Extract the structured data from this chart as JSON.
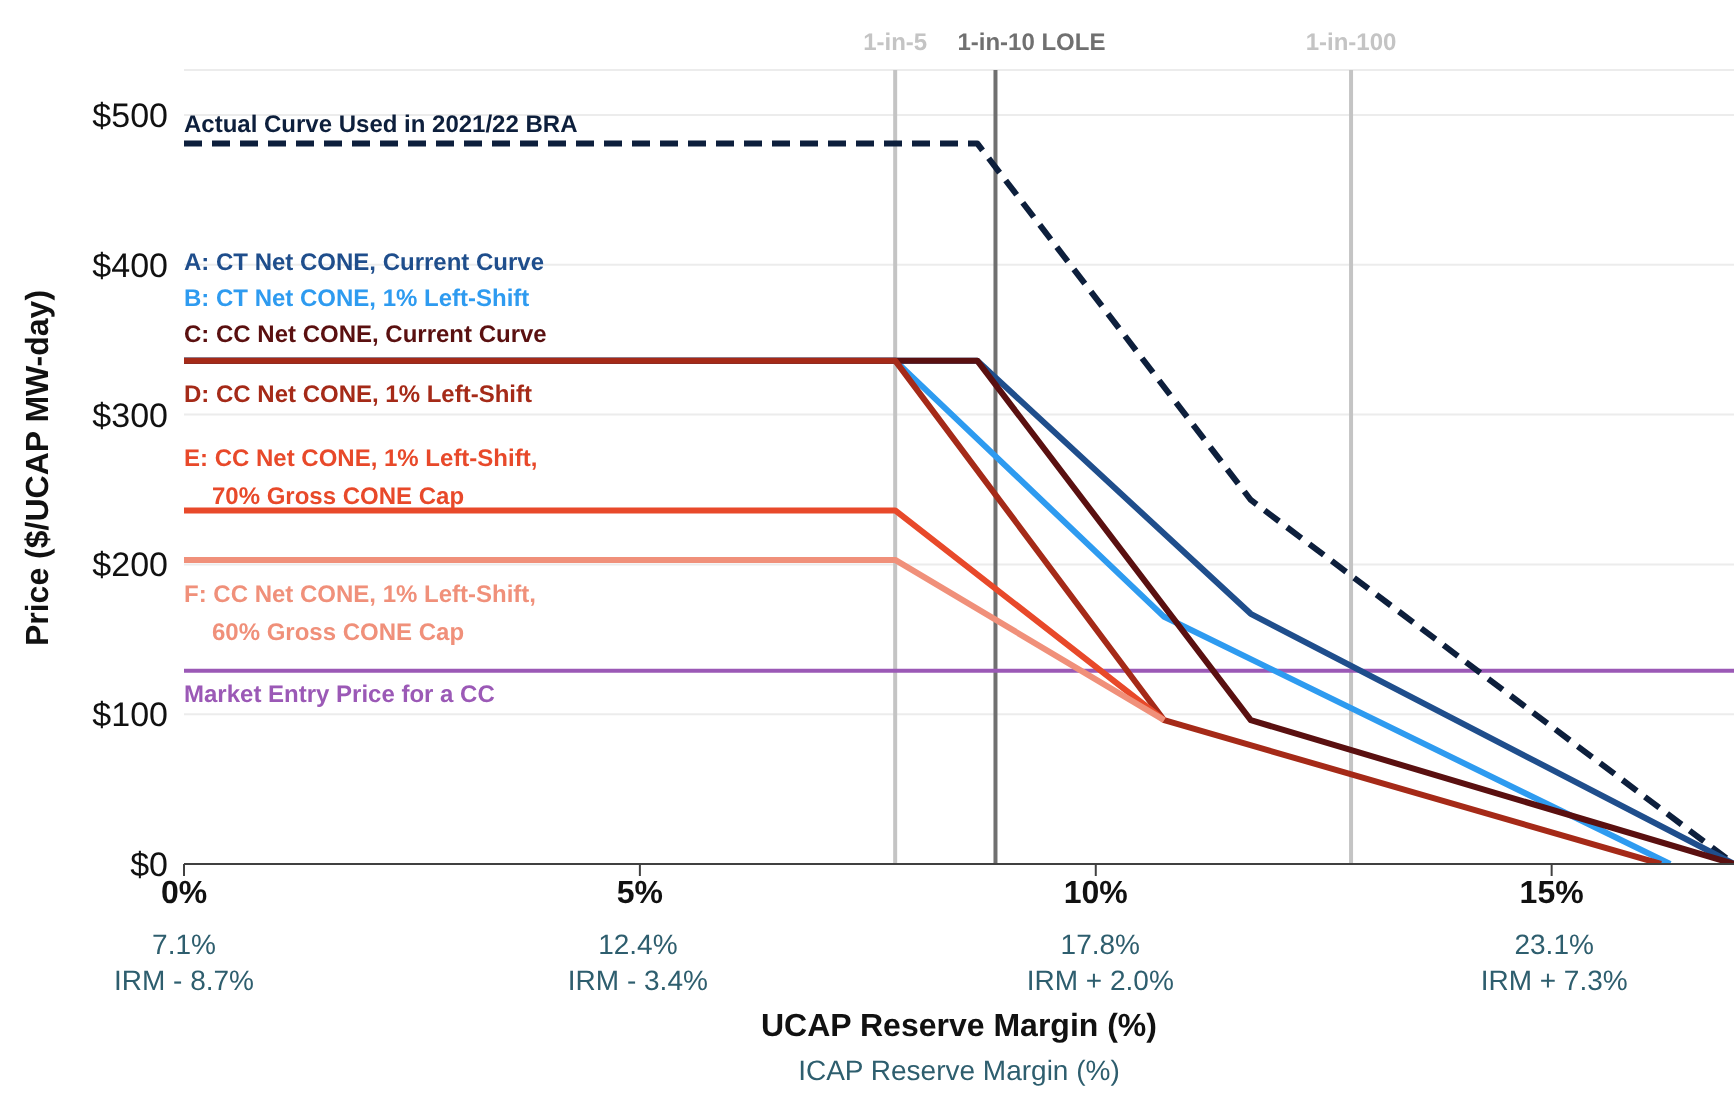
{
  "chart_data": {
    "type": "line",
    "xlabel": "UCAP Reserve Margin (%)",
    "ylabel": "Price ($/UCAP MW-day)",
    "x2label": "ICAP Reserve Margin (%)",
    "xlim": [
      0,
      17
    ],
    "xticks": [
      {
        "value": 0,
        "label": "0%"
      },
      {
        "value": 5,
        "label": "5%"
      },
      {
        "value": 10,
        "label": "10%"
      },
      {
        "value": 15,
        "label": "15%"
      }
    ],
    "x2lim": [
      7.1,
      25.2
    ],
    "x2ticks": [
      {
        "value": 7.1,
        "label": "7.1%"
      },
      {
        "value": 12.4,
        "label": "12.4%"
      },
      {
        "value": 17.8,
        "label": "17.8%"
      },
      {
        "value": 23.1,
        "label": "23.1%"
      }
    ],
    "annotations": [
      "IRM - 8.7%",
      "IRM - 3.4%",
      "IRM + 2.0%",
      "IRM + 7.3%"
    ],
    "ylim": [
      0,
      530
    ],
    "yticks": [
      {
        "value": 0,
        "label": "$0"
      },
      {
        "value": 100,
        "label": "$100"
      },
      {
        "value": 200,
        "label": "$200"
      },
      {
        "value": 300,
        "label": "$300"
      },
      {
        "value": 400,
        "label": "$400"
      },
      {
        "value": 500,
        "label": "$500"
      }
    ],
    "grid": "y",
    "series": [
      {
        "name": "Actual Curve Used in 2021/22 BRA",
        "color": "#0d1f3c",
        "line_style": "dashed",
        "x": [
          0,
          8.7,
          11.7,
          17
        ],
        "values": [
          481,
          481,
          243,
          0
        ]
      },
      {
        "name": "A: CT Net CONE, Current Curve",
        "color": "#1f4e8c",
        "x": [
          0,
          8.7,
          11.7,
          17
        ],
        "values": [
          336,
          336,
          167,
          0
        ]
      },
      {
        "name": "B: CT Net CONE, 1% Left-Shift",
        "color": "#2e9bf0",
        "x": [
          0,
          7.8,
          10.75,
          16.3
        ],
        "values": [
          336,
          336,
          165,
          0
        ]
      },
      {
        "name": "C: CC Net CONE, Current Curve",
        "color": "#5a1010",
        "x": [
          0,
          8.7,
          11.7,
          17
        ],
        "values": [
          336,
          336,
          96,
          0
        ]
      },
      {
        "name": "D: CC Net CONE, 1% Left-Shift",
        "color": "#a52a18",
        "x": [
          0,
          7.8,
          10.75,
          16.2
        ],
        "values": [
          336,
          336,
          96,
          0
        ]
      },
      {
        "name": "E: CC Net CONE, 1% Left-Shift,\n70% Gross CONE Cap",
        "color": "#e8492a",
        "x": [
          0,
          7.8,
          10.75
        ],
        "values": [
          236,
          236,
          96
        ]
      },
      {
        "name": "F: CC Net CONE, 1% Left-Shift,\n60% Gross CONE Cap",
        "color": "#f0907a",
        "x": [
          0,
          7.8,
          10.75
        ],
        "values": [
          203,
          203,
          96
        ]
      }
    ],
    "ref_lines": [
      {
        "axis": "x",
        "value": 7.8,
        "label": "1-in-5",
        "color": "#c4c4c4"
      },
      {
        "axis": "x",
        "value": 8.9,
        "label": "1-in-10 LOLE",
        "color": "#707070"
      },
      {
        "axis": "x",
        "value": 12.8,
        "label": "1-in-100",
        "color": "#c4c4c4"
      },
      {
        "axis": "y",
        "value": 129,
        "label": "Market Entry Price for a CC",
        "color": "#9b59b6"
      }
    ]
  }
}
